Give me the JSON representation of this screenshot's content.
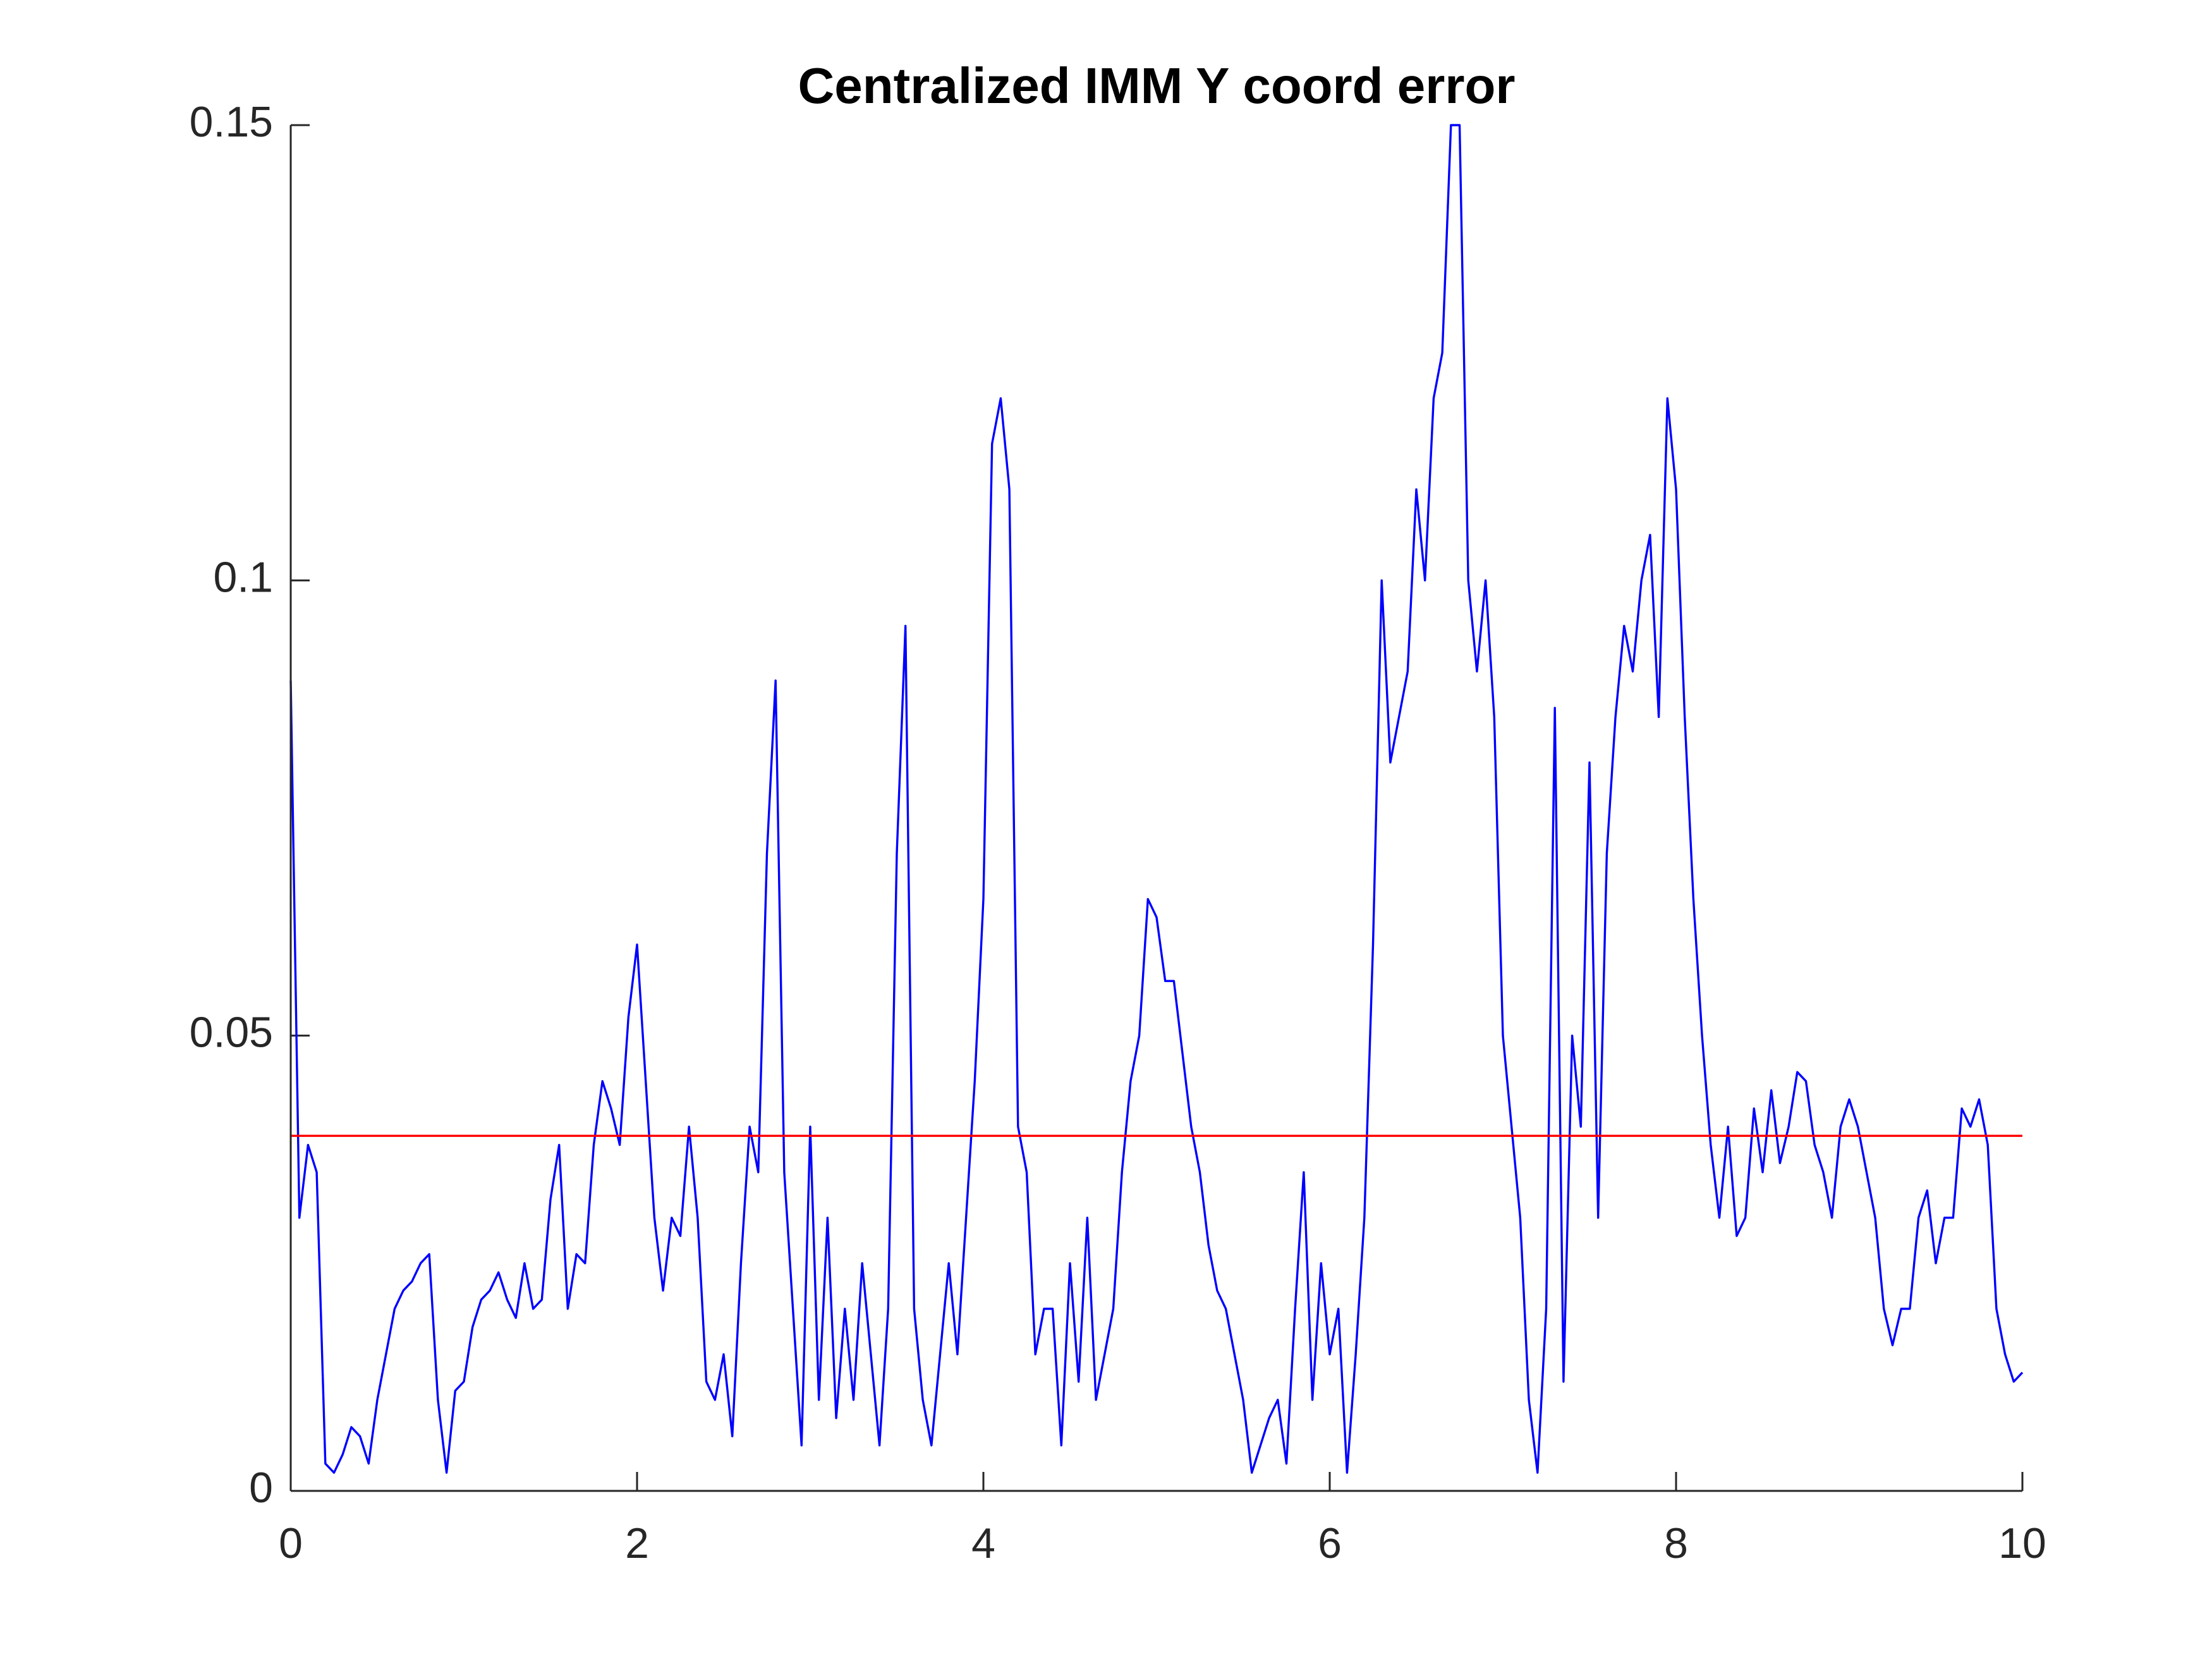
{
  "chart_data": {
    "type": "line",
    "title": "Centralized IMM Y coord error",
    "x": [
      0,
      0.05,
      0.1,
      0.15,
      0.2,
      0.25,
      0.3,
      0.35,
      0.4,
      0.45,
      0.5,
      0.55,
      0.6,
      0.65,
      0.7,
      0.75,
      0.8,
      0.85,
      0.9,
      0.95,
      1,
      1.05,
      1.1,
      1.15,
      1.2,
      1.25,
      1.3,
      1.35,
      1.4,
      1.45,
      1.5,
      1.55,
      1.6,
      1.65,
      1.7,
      1.75,
      1.8,
      1.85,
      1.9,
      1.95,
      2,
      2.05,
      2.1,
      2.15,
      2.2,
      2.25,
      2.3,
      2.35,
      2.4,
      2.45,
      2.5,
      2.55,
      2.6,
      2.65,
      2.7,
      2.75,
      2.8,
      2.85,
      2.9,
      2.95,
      3,
      3.05,
      3.1,
      3.15,
      3.2,
      3.25,
      3.3,
      3.35,
      3.4,
      3.45,
      3.5,
      3.55,
      3.6,
      3.65,
      3.7,
      3.75,
      3.8,
      3.85,
      3.9,
      3.95,
      4,
      4.05,
      4.1,
      4.15,
      4.2,
      4.25,
      4.3,
      4.35,
      4.4,
      4.45,
      4.5,
      4.55,
      4.6,
      4.65,
      4.7,
      4.75,
      4.8,
      4.85,
      4.9,
      4.95,
      5,
      5.05,
      5.1,
      5.15,
      5.2,
      5.25,
      5.3,
      5.35,
      5.4,
      5.45,
      5.5,
      5.55,
      5.6,
      5.65,
      5.7,
      5.75,
      5.8,
      5.85,
      5.9,
      5.95,
      6,
      6.05,
      6.1,
      6.15,
      6.2,
      6.25,
      6.3,
      6.35,
      6.4,
      6.45,
      6.5,
      6.55,
      6.6,
      6.65,
      6.7,
      6.75,
      6.8,
      6.85,
      6.9,
      6.95,
      7,
      7.05,
      7.1,
      7.15,
      7.2,
      7.25,
      7.3,
      7.35,
      7.4,
      7.45,
      7.5,
      7.55,
      7.6,
      7.65,
      7.7,
      7.75,
      7.8,
      7.85,
      7.9,
      7.95,
      8,
      8.05,
      8.1,
      8.15,
      8.2,
      8.25,
      8.3,
      8.35,
      8.4,
      8.45,
      8.5,
      8.55,
      8.6,
      8.65,
      8.7,
      8.75,
      8.8,
      8.85,
      8.9,
      8.95,
      9,
      9.05,
      9.1,
      9.15,
      9.2,
      9.25,
      9.3,
      9.35,
      9.4,
      9.45,
      9.5,
      9.55,
      9.6,
      9.65,
      9.7,
      9.75,
      9.8,
      9.85,
      9.9,
      9.95,
      10
    ],
    "series": [
      {
        "color": "#0000ff",
        "values": [
          0.089,
          0.03,
          0.038,
          0.035,
          0.003,
          0.002,
          0.004,
          0.007,
          0.006,
          0.003,
          0.01,
          0.015,
          0.02,
          0.022,
          0.023,
          0.025,
          0.026,
          0.01,
          0.002,
          0.011,
          0.012,
          0.018,
          0.021,
          0.022,
          0.024,
          0.021,
          0.019,
          0.025,
          0.02,
          0.021,
          0.032,
          0.038,
          0.02,
          0.026,
          0.025,
          0.038,
          0.045,
          0.042,
          0.038,
          0.052,
          0.06,
          0.045,
          0.03,
          0.022,
          0.03,
          0.028,
          0.04,
          0.03,
          0.012,
          0.01,
          0.015,
          0.006,
          0.025,
          0.04,
          0.035,
          0.07,
          0.089,
          0.035,
          0.02,
          0.005,
          0.04,
          0.01,
          0.03,
          0.008,
          0.02,
          0.01,
          0.025,
          0.015,
          0.005,
          0.02,
          0.07,
          0.095,
          0.02,
          0.01,
          0.005,
          0.015,
          0.025,
          0.015,
          0.03,
          0.045,
          0.065,
          0.115,
          0.12,
          0.11,
          0.04,
          0.035,
          0.015,
          0.02,
          0.02,
          0.005,
          0.025,
          0.012,
          0.03,
          0.01,
          0.015,
          0.02,
          0.035,
          0.045,
          0.05,
          0.065,
          0.063,
          0.056,
          0.056,
          0.048,
          0.04,
          0.035,
          0.027,
          0.022,
          0.02,
          0.015,
          0.01,
          0.002,
          0.005,
          0.008,
          0.01,
          0.003,
          0.02,
          0.035,
          0.01,
          0.025,
          0.015,
          0.02,
          0.002,
          0.015,
          0.03,
          0.06,
          0.1,
          0.08,
          0.085,
          0.09,
          0.11,
          0.1,
          0.12,
          0.125,
          0.15,
          0.15,
          0.1,
          0.09,
          0.1,
          0.085,
          0.05,
          0.04,
          0.03,
          0.01,
          0.002,
          0.02,
          0.086,
          0.012,
          0.05,
          0.04,
          0.08,
          0.03,
          0.07,
          0.085,
          0.095,
          0.09,
          0.1,
          0.105,
          0.085,
          0.12,
          0.11,
          0.085,
          0.065,
          0.05,
          0.038,
          0.03,
          0.04,
          0.028,
          0.03,
          0.042,
          0.035,
          0.044,
          0.036,
          0.04,
          0.046,
          0.045,
          0.038,
          0.035,
          0.03,
          0.04,
          0.043,
          0.04,
          0.035,
          0.03,
          0.02,
          0.016,
          0.02,
          0.02,
          0.03,
          0.033,
          0.025,
          0.03,
          0.03,
          0.042,
          0.04,
          0.043,
          0.038,
          0.02,
          0.015,
          0.012,
          0.013
        ]
      }
    ],
    "reference_line": {
      "value": 0.039,
      "color": "#ff0000"
    },
    "xlim": [
      0,
      10
    ],
    "xticks": [
      0,
      2,
      4,
      6,
      8,
      10
    ],
    "ylim": [
      0,
      0.15
    ],
    "yticks": [
      0,
      0.05,
      0.1,
      0.15
    ]
  }
}
